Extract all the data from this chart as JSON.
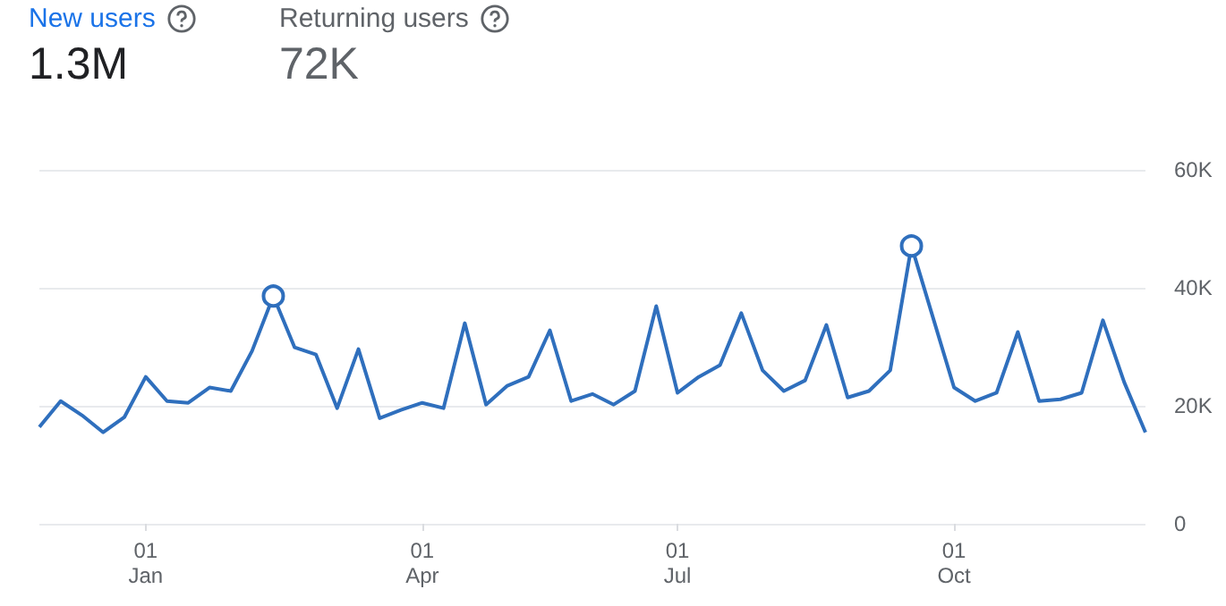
{
  "chart_data": {
    "type": "line",
    "annotations": [
      "New users",
      "1.3M",
      "Returning users",
      "72K"
    ],
    "categories": [
      null,
      null,
      null,
      null,
      null,
      "01\nJan",
      null,
      null,
      null,
      null,
      null,
      null,
      null,
      null,
      null,
      null,
      null,
      null,
      "01\nApr",
      null,
      null,
      null,
      null,
      null,
      null,
      null,
      null,
      null,
      null,
      null,
      "01\nJul",
      null,
      null,
      null,
      null,
      null,
      null,
      null,
      null,
      null,
      null,
      null,
      null,
      "01\nOct",
      null,
      null,
      null,
      null,
      null,
      null,
      null,
      null,
      null
    ],
    "series": [
      {
        "color": "#2f6fbd",
        "marker": "none",
        "values": [
          16400,
          20800,
          18400,
          15500,
          18100,
          24900,
          20800,
          20500,
          23100,
          22500,
          29300,
          38600,
          29900,
          28700,
          19600,
          29600,
          17900,
          19300,
          20500,
          19600,
          34000,
          20200,
          23400,
          24900,
          32800,
          20800,
          22000,
          20200,
          22500,
          36900,
          22200,
          24900,
          26900,
          35700,
          26000,
          22500,
          24300,
          33700,
          21400,
          22500,
          26000,
          47100,
          35100,
          23100,
          20800,
          22200,
          32500,
          20800,
          21100,
          22200,
          34500,
          24000,
          15500
        ]
      },
      {
        "type": "scatter",
        "color": "#2f6fbd",
        "marker": "circle",
        "values": [
          null,
          null,
          null,
          null,
          null,
          null,
          null,
          null,
          null,
          null,
          null,
          38600,
          null,
          null,
          null,
          null,
          null,
          null,
          null,
          null,
          null,
          null,
          null,
          null,
          null,
          null,
          null,
          null,
          null,
          null,
          null,
          null,
          null,
          null,
          null,
          null,
          null,
          null,
          null,
          null,
          null,
          47100,
          null,
          null,
          null,
          null,
          null,
          null,
          null,
          null,
          null,
          null,
          null
        ]
      }
    ],
    "ylim": [
      0,
      60000
    ],
    "yticks": [
      {
        "value": 0,
        "label": "0"
      },
      {
        "value": 20000,
        "label": "20K"
      },
      {
        "value": 40000,
        "label": "40K"
      },
      {
        "value": 60000,
        "label": "60K"
      }
    ],
    "grid": "y"
  }
}
